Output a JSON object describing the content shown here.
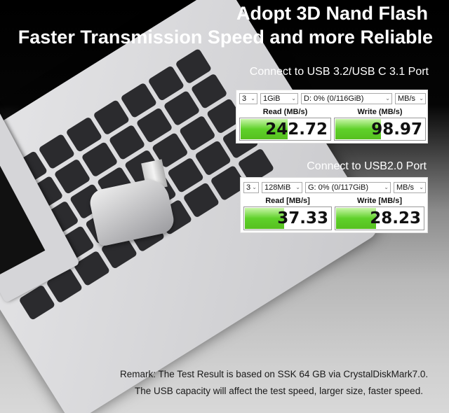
{
  "headline": {
    "line1": "Adopt 3D Nand Flash",
    "line2": "Faster Transmission Speed and more Reliable"
  },
  "tests": [
    {
      "caption": "Connect to USB 3.2/USB C 3.1 Port",
      "count": "3",
      "size": "1GiB",
      "drive": "D: 0% (0/116GiB)",
      "unit": "MB/s",
      "read_label": "Read (MB/s)",
      "write_label": "Write (MB/s)",
      "read": "242.72",
      "write": "98.97",
      "read_fill": 0.52,
      "write_fill": 0.5
    },
    {
      "caption": "Connect to USB2.0 Port",
      "count": "3",
      "size": "128MiB",
      "drive": "G: 0% (0/117GiB)",
      "unit": "MB/s",
      "read_label": "Read [MB/s]",
      "write_label": "Write [MB/s]",
      "read": "37.33",
      "write": "28.23",
      "read_fill": 0.45,
      "write_fill": 0.45
    }
  ],
  "remark": {
    "line1": "Remark: The Test Result is based on SSK   64 GB via CrystalDiskMark7.0.",
    "line2": "The USB capacity will affect the test speed, larger size, faster speed."
  },
  "colors": {
    "bar_green": "#5fd12a"
  }
}
